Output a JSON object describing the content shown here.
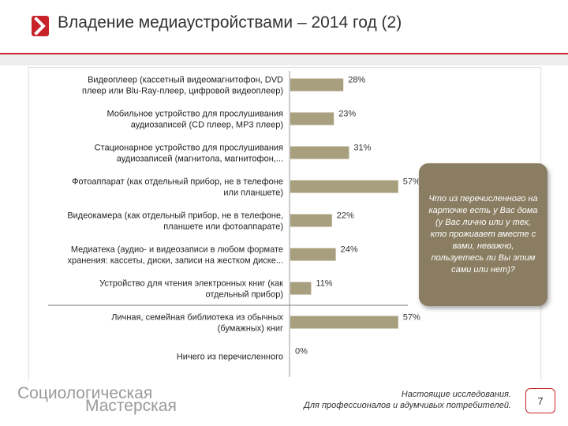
{
  "slide": {
    "title": "Владение медиаустройствами – 2014 год (2)",
    "page_number": "7",
    "accent_color": "#c8222b"
  },
  "question": {
    "text": "Что из перечисленного на карточке есть у Вас дома (у Вас лично или у тех, кто проживает вместе с вами, неважно, пользуетесь ли Вы этим сами или нет)?"
  },
  "footer": {
    "brand_line1": "Социологическая",
    "brand_line2": "Мастерская",
    "tagline_line1": "Настоящие исследования.",
    "tagline_line2": "Для профессионалов и вдумчивых потребителей."
  },
  "chart_data": {
    "type": "bar",
    "orientation": "horizontal",
    "xlim": [
      0,
      100
    ],
    "bar_color": "#a89f7e",
    "categories": [
      [
        "Видеоплеер (кассетный видеомагнитофон, DVD",
        "плеер или Blu-Ray-плеер, цифровой видеоплеер)"
      ],
      [
        "Мобильное устройство для прослушивания",
        "аудиозаписей (CD плеер, MP3 плеер)"
      ],
      [
        "Стационарное устройство для прослушивания",
        "аудиозаписей (магнитола, магнитофон,..."
      ],
      [
        "Фотоаппарат (как отдельный прибор, не в телефоне",
        "или планшете)"
      ],
      [
        "Видеокамера (как отдельный прибор, не в телефоне,",
        "планшете или фотоаппарате)"
      ],
      [
        "Медиатека (аудио- и видеозаписи в любом формате",
        "хранения: кассеты, диски, записи на жестком диске..."
      ],
      [
        "Устройство для чтения электронных книг (как",
        "отдельный прибор)"
      ],
      [
        "Личная, семейная библиотека из обычных",
        "(бумажных) книг"
      ],
      [
        "Ничего из перечисленного"
      ]
    ],
    "values": [
      28,
      23,
      31,
      57,
      22,
      24,
      11,
      57,
      0
    ],
    "value_labels": [
      "28%",
      "23%",
      "31%",
      "57%",
      "22%",
      "24%",
      "11%",
      "57%",
      "0%"
    ],
    "separator_after_index": 6
  }
}
